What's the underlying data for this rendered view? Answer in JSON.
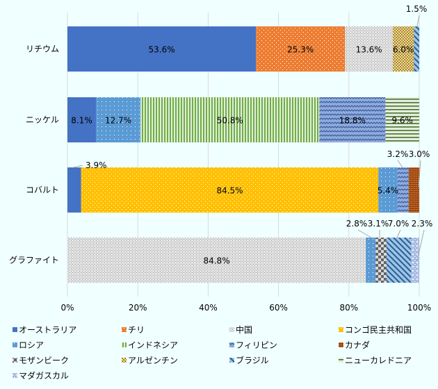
{
  "chart_data": {
    "type": "bar",
    "orientation": "horizontal",
    "stacked": true,
    "categories": [
      "リチウム",
      "ニッケル",
      "コバルト",
      "グラファイト"
    ],
    "xlim": [
      0,
      100
    ],
    "xticks": [
      "0%",
      "20%",
      "40%",
      "60%",
      "80%",
      "100%"
    ],
    "legend_position": "bottom",
    "grid": true,
    "series": [
      {
        "name": "オーストラリア",
        "key": "aus",
        "values": [
          53.6,
          8.1,
          3.9,
          null
        ]
      },
      {
        "name": "チリ",
        "key": "chl",
        "values": [
          25.3,
          null,
          null,
          null
        ]
      },
      {
        "name": "中国",
        "key": "chn",
        "values": [
          13.6,
          null,
          null,
          84.8
        ]
      },
      {
        "name": "コンゴ民主共和国",
        "key": "drc",
        "values": [
          null,
          null,
          84.5,
          null
        ]
      },
      {
        "name": "ロシア",
        "key": "rus",
        "values": [
          null,
          12.7,
          5.4,
          2.8
        ]
      },
      {
        "name": "インドネシア",
        "key": "idn",
        "values": [
          null,
          50.8,
          null,
          null
        ]
      },
      {
        "name": "フィリピン",
        "key": "phl",
        "values": [
          null,
          18.8,
          3.2,
          null
        ]
      },
      {
        "name": "カナダ",
        "key": "can",
        "values": [
          null,
          null,
          3.0,
          null
        ]
      },
      {
        "name": "モザンビーク",
        "key": "moz",
        "values": [
          null,
          null,
          null,
          3.1
        ]
      },
      {
        "name": "アルゼンチン",
        "key": "arg",
        "values": [
          6.0,
          null,
          null,
          null
        ]
      },
      {
        "name": "ブラジル",
        "key": "bra",
        "values": [
          1.5,
          null,
          null,
          7.0
        ]
      },
      {
        "name": "ニューカルドニア",
        "key": "ncl",
        "values": [
          null,
          9.6,
          null,
          null
        ]
      },
      {
        "name": "マダガスカル",
        "key": "mdg",
        "values": [
          null,
          null,
          null,
          2.3
        ]
      }
    ],
    "stack_order": [
      [
        "aus",
        "chl",
        "chn",
        "arg",
        "bra"
      ],
      [
        "aus",
        "rus",
        "idn",
        "phl",
        "ncl"
      ],
      [
        "aus",
        "drc",
        "rus",
        "phl",
        "can"
      ],
      [
        "chn",
        "rus",
        "moz",
        "bra",
        "mdg"
      ]
    ],
    "data_labels": [
      [
        "53.6%",
        "25.3%",
        "13.6%",
        "6.0%",
        "1.5%"
      ],
      [
        "8.1%",
        "12.7%",
        "50.8%",
        "18.8%",
        "9.6%"
      ],
      [
        "3.9%",
        "84.5%",
        "5.4%",
        "3.2%",
        "3.0%"
      ],
      [
        "84.8%",
        "2.8%",
        "3.1%",
        "7.0%",
        "2.3%"
      ]
    ]
  },
  "legend_label": "ニューカレドニア",
  "colors": {
    "aus": "#4472c4",
    "chl": "#ed7d31",
    "chn": "#a5a5a5",
    "drc": "#ffc000",
    "rus": "#5b9bd5",
    "idn": "#70ad47",
    "phl": "#4472c4",
    "can": "#9e480e",
    "moz": "#636363",
    "arg": "#997300",
    "bra": "#255e91",
    "ncl": "#43682b",
    "mdg": "#698ed0"
  }
}
